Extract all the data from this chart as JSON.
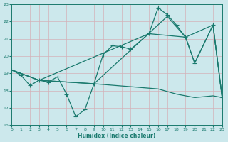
{
  "bg_color": "#cce8ec",
  "grid_color": "#d4b8c0",
  "line_color": "#1a7a6e",
  "xlabel": "Humidex (Indice chaleur)",
  "xlim": [
    0,
    23
  ],
  "ylim": [
    16,
    23
  ],
  "xticks": [
    0,
    1,
    2,
    3,
    4,
    5,
    6,
    7,
    8,
    9,
    10,
    11,
    12,
    13,
    14,
    15,
    16,
    17,
    18,
    19,
    20,
    21,
    22,
    23
  ],
  "yticks": [
    16,
    17,
    18,
    19,
    20,
    21,
    22,
    23
  ],
  "line1_x": [
    0,
    1,
    2,
    3,
    4,
    5,
    6,
    7,
    8,
    9,
    10,
    11,
    12,
    13,
    15,
    16,
    17,
    18,
    19,
    20,
    22,
    23
  ],
  "line1_y": [
    19.2,
    18.9,
    18.3,
    18.6,
    18.5,
    18.8,
    17.8,
    16.5,
    16.9,
    18.4,
    20.1,
    20.6,
    20.55,
    20.4,
    21.3,
    22.8,
    22.4,
    21.8,
    21.1,
    19.6,
    21.8,
    17.6
  ],
  "line2_x": [
    0,
    3,
    15,
    19,
    20,
    22,
    23
  ],
  "line2_y": [
    19.2,
    18.6,
    21.3,
    21.1,
    19.6,
    21.8,
    17.6
  ],
  "line3_x": [
    0,
    3,
    9,
    16,
    18,
    20,
    21,
    22,
    23
  ],
  "line3_y": [
    19.2,
    18.6,
    18.4,
    18.1,
    17.8,
    17.6,
    17.65,
    17.7,
    17.6
  ],
  "line4_x": [
    0,
    3,
    9,
    17,
    19,
    22,
    23
  ],
  "line4_y": [
    19.2,
    18.6,
    18.4,
    22.3,
    21.1,
    21.8,
    17.6
  ]
}
